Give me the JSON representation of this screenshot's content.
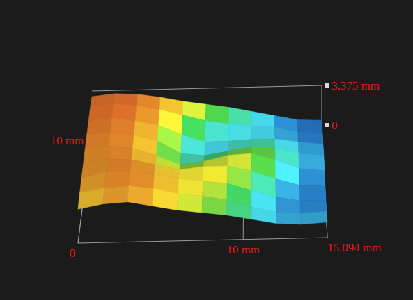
{
  "chart_data": {
    "type": "surface",
    "x": [
      0,
      1.5,
      3,
      4.5,
      6,
      7.5,
      9,
      10.5,
      12,
      13.5,
      15.094
    ],
    "y": [
      0,
      1.4,
      2.8,
      4.2,
      5.6,
      7,
      8.4,
      9.8,
      11
    ],
    "z": [
      [
        2.2,
        2.5,
        2.6,
        2.3,
        2.0,
        1.8,
        1.6,
        1.3,
        1.0,
        0.9,
        1.0
      ],
      [
        2.4,
        2.7,
        2.8,
        2.6,
        2.2,
        2.0,
        1.7,
        1.2,
        0.8,
        0.7,
        0.8
      ],
      [
        2.5,
        2.9,
        2.9,
        2.7,
        2.3,
        2.1,
        1.9,
        1.4,
        0.9,
        0.6,
        0.6
      ],
      [
        2.6,
        2.9,
        2.8,
        2.4,
        2.0,
        2.2,
        2.2,
        1.8,
        1.2,
        0.7,
        0.6
      ],
      [
        2.7,
        2.9,
        2.7,
        2.1,
        1.4,
        1.6,
        2.0,
        2.1,
        1.6,
        0.9,
        0.7
      ],
      [
        2.8,
        3.0,
        2.7,
        2.2,
        1.2,
        1.0,
        1.3,
        1.6,
        1.5,
        1.0,
        0.8
      ],
      [
        2.9,
        3.1,
        2.8,
        2.4,
        1.6,
        1.0,
        1.0,
        1.1,
        1.1,
        0.8,
        0.6
      ],
      [
        3.0,
        3.2,
        3.0,
        2.6,
        2.1,
        1.6,
        1.3,
        1.1,
        0.9,
        0.5,
        0.4
      ],
      [
        2.9,
        3.1,
        3.0,
        2.7,
        2.3,
        2.0,
        1.7,
        1.3,
        0.9,
        0.5,
        0.4
      ]
    ],
    "xlim": [
      0,
      15.094
    ],
    "ylim": [
      0,
      11
    ],
    "zlim": [
      0,
      3.375
    ],
    "xticks": [
      0,
      {
        "value": 10,
        "label": "10 mm"
      },
      {
        "value": 15.094,
        "label": "15.094 mm"
      }
    ],
    "yticks": [
      {
        "value": 10,
        "label": "10 mm"
      }
    ],
    "zticks": [
      0,
      {
        "value": 3.375,
        "label": "3.375 mm"
      }
    ],
    "grid": true
  }
}
